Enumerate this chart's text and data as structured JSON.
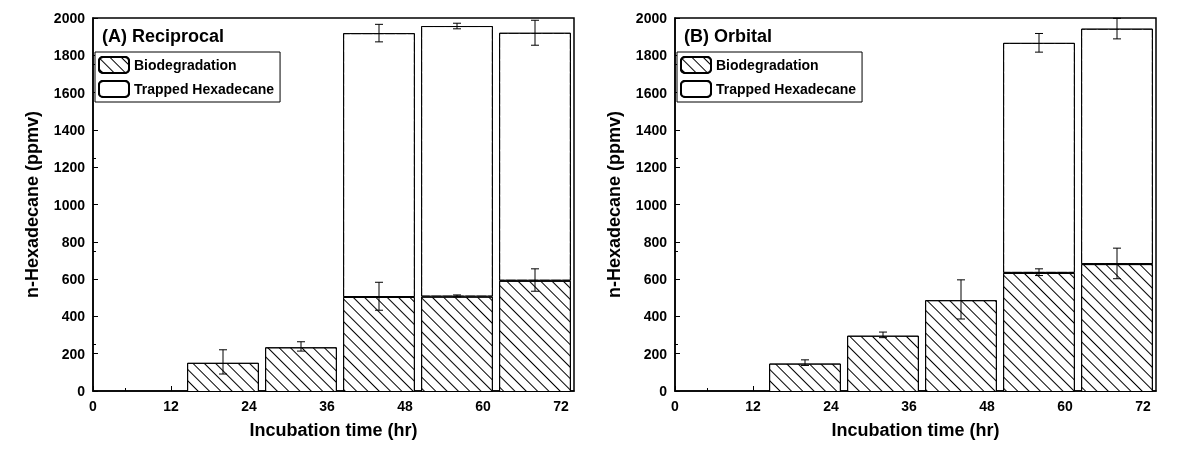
{
  "chart_data": [
    {
      "type": "bar",
      "title": "(A) Reciprocal",
      "xlabel": "Incubation time (hr)",
      "ylabel": "n-Hexadecane (ppmv)",
      "stacked": true,
      "x": [
        20,
        32,
        44,
        56,
        68
      ],
      "xlim": [
        0,
        74
      ],
      "xticks": [
        0,
        12,
        24,
        36,
        48,
        60,
        72
      ],
      "ylim": [
        0,
        2000
      ],
      "yticks": [
        0,
        200,
        400,
        600,
        800,
        1000,
        1200,
        1400,
        1600,
        1800,
        2000
      ],
      "grid": false,
      "legend": "top left",
      "series": [
        {
          "name": "Biodegradation",
          "color": "#000000",
          "values": [
            156,
            239,
            508,
            510,
            595
          ],
          "errors": [
            65,
            25,
            75,
            5,
            60
          ]
        },
        {
          "name": "Trapped Hexadecane",
          "color": "#ffffff",
          "values": [
            null,
            null,
            1411,
            1447,
            1326
          ],
          "errors": [
            null,
            null,
            47,
            15,
            67
          ]
        }
      ]
    },
    {
      "type": "bar",
      "title": "(B) Orbital",
      "xlabel": "Incubation time (hr)",
      "ylabel": "n-Hexadecane (ppmv)",
      "stacked": true,
      "x": [
        20,
        32,
        44,
        56,
        68
      ],
      "xlim": [
        0,
        74
      ],
      "xticks": [
        0,
        12,
        24,
        36,
        48,
        60,
        72
      ],
      "ylim": [
        0,
        2000
      ],
      "yticks": [
        0,
        200,
        400,
        600,
        800,
        1000,
        1200,
        1400,
        1600,
        1800,
        2000
      ],
      "grid": false,
      "legend": "top left",
      "series": [
        {
          "name": "Biodegradation",
          "color": "#000000",
          "values": [
            152,
            301,
            491,
            637,
            684
          ],
          "errors": [
            15,
            15,
            105,
            18,
            82
          ]
        },
        {
          "name": "Trapped Hexadecane",
          "color": "#ffffff",
          "values": [
            null,
            null,
            null,
            1230,
            1259
          ],
          "errors": [
            null,
            null,
            null,
            50,
            55
          ]
        }
      ]
    }
  ]
}
